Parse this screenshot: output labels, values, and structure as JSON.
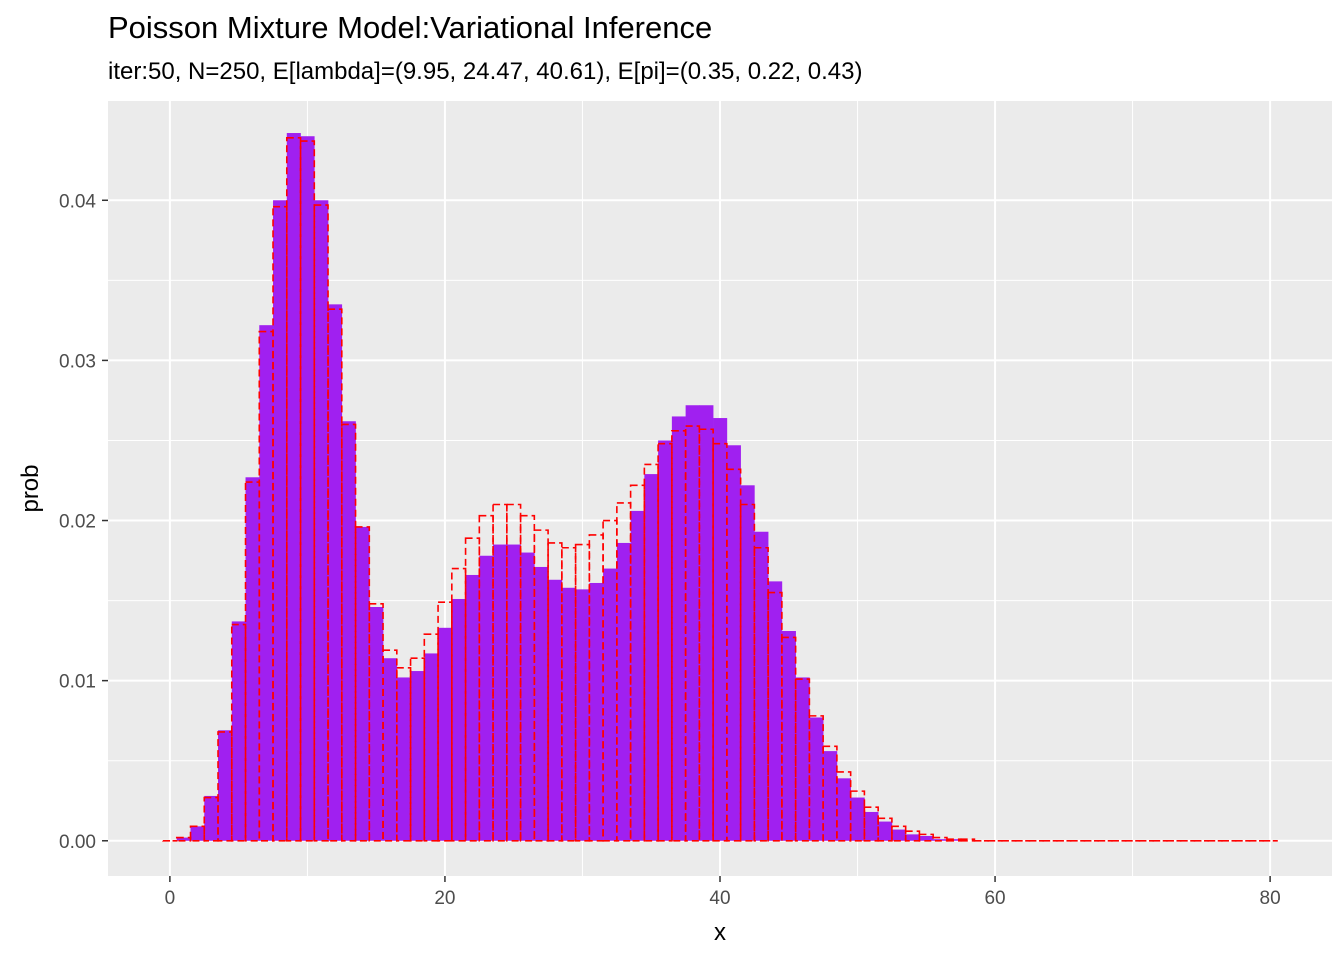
{
  "chart_data": {
    "type": "bar",
    "title": "Poisson Mixture Model:Variational Inference",
    "subtitle": "iter:50, N=250, E[lambda]=(9.95, 24.47, 40.61), E[pi]=(0.35, 0.22, 0.43)",
    "xlabel": "x",
    "ylabel": "prob",
    "xlim": [
      -4.5,
      84.5
    ],
    "ylim": [
      -0.0022,
      0.0462
    ],
    "x_ticks": [
      0,
      20,
      40,
      60,
      80
    ],
    "x_tick_labels": [
      "0",
      "20",
      "40",
      "60",
      "80"
    ],
    "y_ticks": [
      0.0,
      0.01,
      0.02,
      0.03,
      0.04
    ],
    "y_tick_labels": [
      "0.00",
      "0.01",
      "0.02",
      "0.03",
      "0.04"
    ],
    "grid": true,
    "x": [
      0,
      1,
      2,
      3,
      4,
      5,
      6,
      7,
      8,
      9,
      10,
      11,
      12,
      13,
      14,
      15,
      16,
      17,
      18,
      19,
      20,
      21,
      22,
      23,
      24,
      25,
      26,
      27,
      28,
      29,
      30,
      31,
      32,
      33,
      34,
      35,
      36,
      37,
      38,
      39,
      40,
      41,
      42,
      43,
      44,
      45,
      46,
      47,
      48,
      49,
      50,
      51,
      52,
      53,
      54,
      55,
      56,
      57,
      58,
      59,
      60,
      61,
      62,
      63,
      64,
      65,
      66,
      67,
      68,
      69,
      70,
      71,
      72,
      73,
      74,
      75,
      76,
      77,
      78,
      79,
      80
    ],
    "series": [
      {
        "style": "filled",
        "color": "#a020f0",
        "values": [
          0.0,
          0.0002,
          0.0009,
          0.0028,
          0.0069,
          0.0137,
          0.0227,
          0.0322,
          0.04,
          0.0442,
          0.044,
          0.04,
          0.0335,
          0.0262,
          0.0196,
          0.0146,
          0.0114,
          0.0102,
          0.0106,
          0.0117,
          0.0133,
          0.0151,
          0.0166,
          0.0178,
          0.0185,
          0.0185,
          0.018,
          0.0171,
          0.0163,
          0.0158,
          0.0157,
          0.0161,
          0.017,
          0.0186,
          0.0206,
          0.0229,
          0.025,
          0.0265,
          0.0272,
          0.0272,
          0.0264,
          0.0247,
          0.0222,
          0.0193,
          0.0162,
          0.0131,
          0.0102,
          0.0077,
          0.0056,
          0.0039,
          0.0027,
          0.0018,
          0.0012,
          0.0007,
          0.0004,
          0.0003,
          0.0001,
          0.0001,
          0.0,
          0.0,
          0.0,
          0.0,
          0.0,
          0.0,
          0.0,
          0.0,
          0.0,
          0.0,
          0.0,
          0.0,
          0.0,
          0.0,
          0.0,
          0.0,
          0.0,
          0.0,
          0.0,
          0.0,
          0.0,
          0.0,
          0.0
        ]
      },
      {
        "style": "dashed-outline",
        "color": "#ff0000",
        "values": [
          0.0,
          0.0002,
          0.0009,
          0.0027,
          0.0068,
          0.0135,
          0.0224,
          0.0318,
          0.0396,
          0.0439,
          0.0437,
          0.0397,
          0.0332,
          0.026,
          0.0196,
          0.0148,
          0.0119,
          0.0108,
          0.0114,
          0.0129,
          0.0149,
          0.017,
          0.0189,
          0.0203,
          0.021,
          0.021,
          0.0203,
          0.0194,
          0.0186,
          0.0183,
          0.0185,
          0.0191,
          0.02,
          0.0211,
          0.0222,
          0.0235,
          0.0248,
          0.0256,
          0.0259,
          0.0257,
          0.0248,
          0.0232,
          0.021,
          0.0183,
          0.0155,
          0.0127,
          0.0101,
          0.0078,
          0.0059,
          0.0043,
          0.0031,
          0.0021,
          0.0014,
          0.0009,
          0.0006,
          0.0004,
          0.0002,
          0.0001,
          0.0001,
          0.0,
          0.0,
          0.0,
          0.0,
          0.0,
          0.0,
          0.0,
          0.0,
          0.0,
          0.0,
          0.0,
          0.0,
          0.0,
          0.0,
          0.0,
          0.0,
          0.0,
          0.0,
          0.0,
          0.0,
          0.0,
          0.0
        ]
      }
    ],
    "colors": {
      "panel_bg": "#ebebeb",
      "grid": "#ffffff",
      "tick_text": "#4d4d4d"
    }
  }
}
